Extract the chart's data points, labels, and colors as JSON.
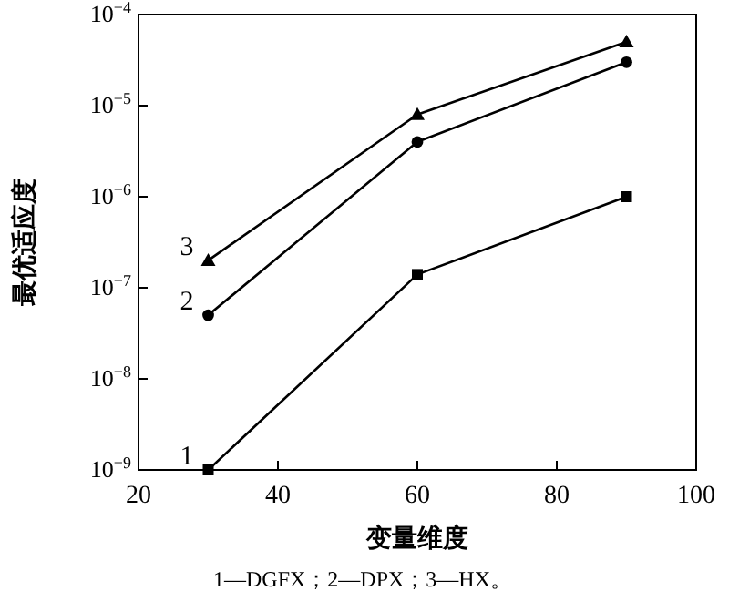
{
  "chart_data": {
    "type": "line",
    "xlabel": "变量维度",
    "ylabel": "最优适应度",
    "log": "y",
    "x": [
      30,
      60,
      90
    ],
    "series": [
      {
        "name": "1",
        "color": "#000000",
        "marker": "square",
        "values": [
          1e-09,
          1.4e-07,
          1e-06
        ]
      },
      {
        "name": "2",
        "color": "#000000",
        "marker": "circle",
        "values": [
          5e-08,
          4e-06,
          3e-05
        ]
      },
      {
        "name": "3",
        "color": "#000000",
        "marker": "triangle",
        "values": [
          2e-07,
          8e-06,
          5e-05
        ]
      }
    ],
    "xlim": [
      20,
      100
    ],
    "xticks": [
      20,
      40,
      60,
      80,
      100
    ],
    "ylim": [
      1e-09,
      0.0001
    ],
    "yticks": [
      {
        "value": 1e-09,
        "label": "10$^{−9}$"
      },
      {
        "value": 1e-08,
        "label": "10$^{−8}$"
      },
      {
        "value": 1e-07,
        "label": "10$^{−7}$"
      },
      {
        "value": 1e-06,
        "label": "10$^{−6}$"
      },
      {
        "value": 1e-05,
        "label": "10$^{−5}$"
      },
      {
        "value": 0.0001,
        "label": "10$^{−4}$"
      }
    ],
    "annotations": [
      "1—DGFX；2—DPX；3—HX。"
    ]
  }
}
